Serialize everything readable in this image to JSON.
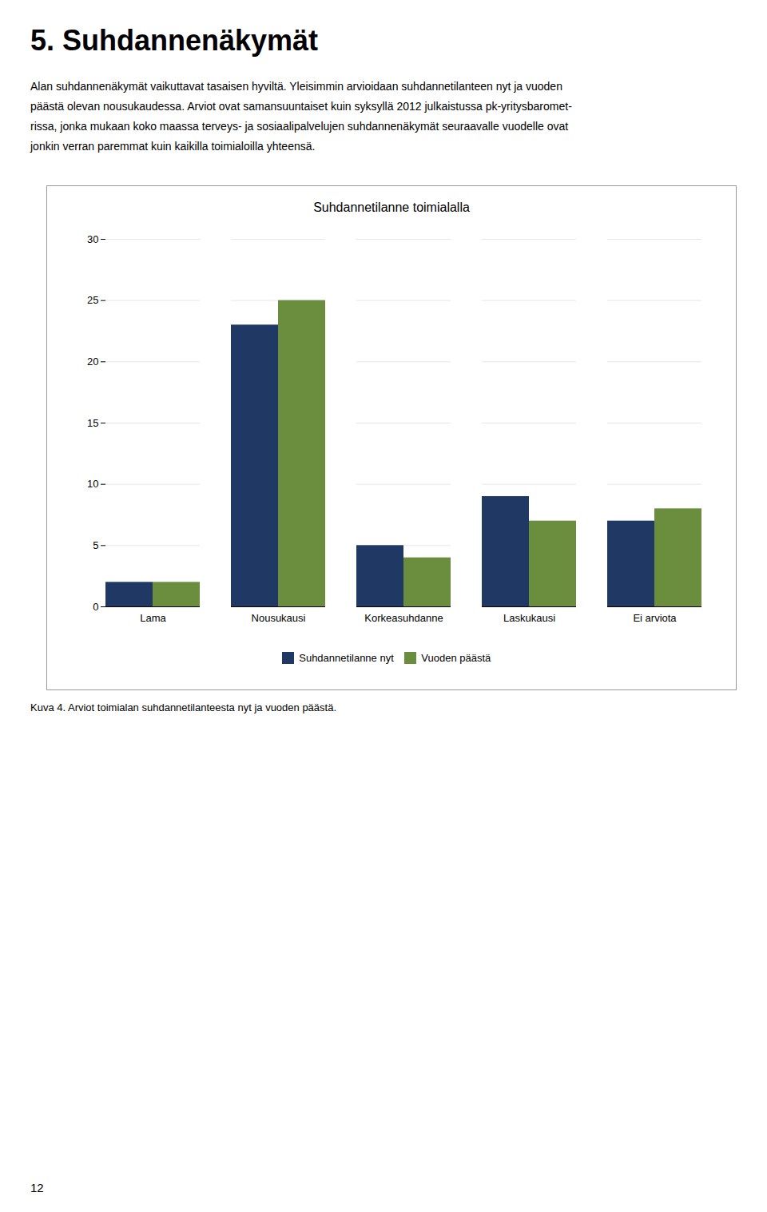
{
  "page_title": "5.  Suhdannenäkymät",
  "text": [
    "Alan suhdannenäkymät vaikuttavat tasaisen hyviltä. Yleisimmin arvioidaan suhdannetilanteen nyt ja vuoden",
    "päästä olevan nousukaudessa. Arviot ovat samansuuntaiset kuin syksyllä 2012 julkaistussa pk-yritysbaromet-",
    "rissa, jonka mukaan koko maassa terveys- ja sosiaalipalvelujen suhdannenäkymät seuraavalle vuodelle ovat",
    "jonkin verran paremmat kuin kaikilla toimialoilla yhteensä."
  ],
  "caption": "Kuva 4. Arviot toimialan suhdannetilanteesta nyt ja vuoden päästä.",
  "page_number": "12",
  "chart_data": {
    "type": "bar",
    "title": "Suhdannetilanne toimialalla",
    "categories": [
      "Lama",
      "Nousukausi",
      "Korkeasuhdanne",
      "Laskukausi",
      "Ei arviota"
    ],
    "series": [
      {
        "name": "Suhdannetilanne nyt",
        "color": "#1F3864",
        "values": [
          2,
          23,
          5,
          9,
          7
        ]
      },
      {
        "name": "Vuoden päästä",
        "color": "#6B8E3E",
        "values": [
          2,
          25,
          4,
          7,
          8
        ]
      }
    ],
    "ylim": [
      0,
      30
    ],
    "yticks": [
      0,
      5,
      10,
      15,
      20,
      25,
      30
    ],
    "grid": true,
    "legend": "bottom"
  }
}
